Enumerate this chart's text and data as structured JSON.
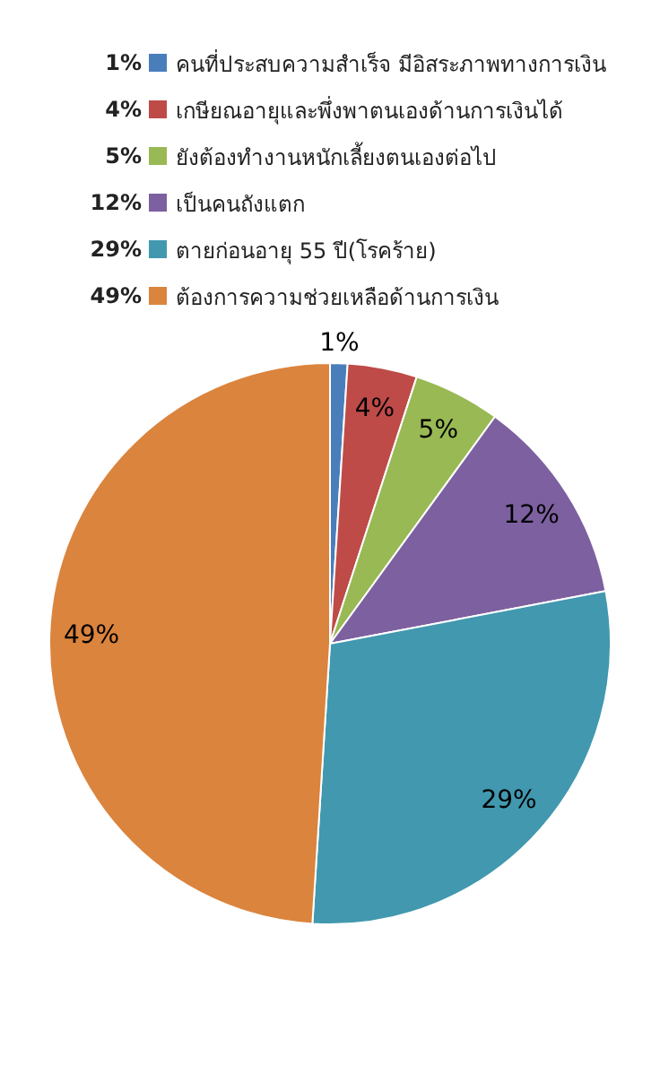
{
  "chart_data": {
    "type": "pie",
    "categories": [
      "คนที่ประสบความสำเร็จ มีอิสระภาพทางการเงิน",
      "เกษียณอายุและพึ่งพาตนเองด้านการเงินได้",
      "ยังต้องทำงานหนักเลี้ยงตนเองต่อไป",
      "เป็นคนถังแตก",
      "ตายก่อนอายุ 55 ปี(โรคร้าย)",
      "ต้องการความช่วยเหลือด้านการเงิน"
    ],
    "values": [
      1,
      4,
      5,
      12,
      29,
      49
    ],
    "value_labels": [
      "1%",
      "4%",
      "5%",
      "12%",
      "29%",
      "49%"
    ],
    "colors": [
      "#4a7ebb",
      "#be4b48",
      "#98b954",
      "#7d60a0",
      "#4198af",
      "#db843d"
    ],
    "legend": "top"
  }
}
